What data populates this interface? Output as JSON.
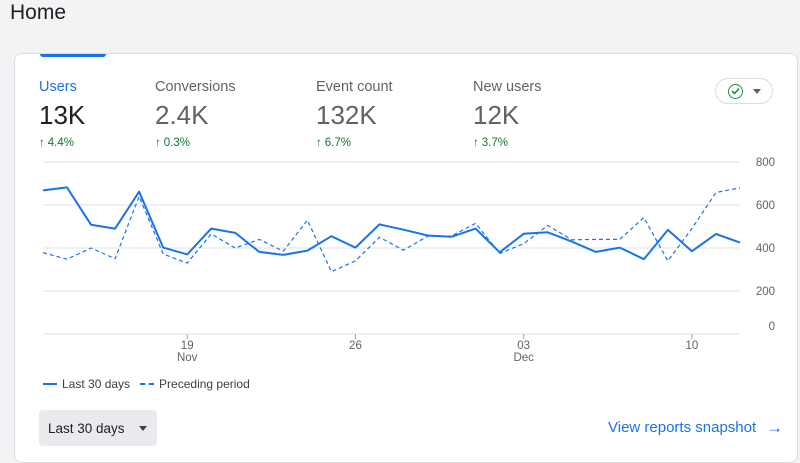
{
  "page": {
    "title": "Home"
  },
  "metrics": [
    {
      "label": "Users",
      "value": "13K",
      "delta": "4.4%"
    },
    {
      "label": "Conversions",
      "value": "2.4K",
      "delta": "0.3%"
    },
    {
      "label": "Event count",
      "value": "132K",
      "delta": "6.7%"
    },
    {
      "label": "New users",
      "value": "12K",
      "delta": "3.7%"
    }
  ],
  "status": {
    "icon": "check-circle-icon",
    "dropdown_icon": "caret-down-icon"
  },
  "colors": {
    "accent": "#1a73e8",
    "positive": "#137333",
    "grid": "#e0e0e0"
  },
  "legend": {
    "current": "Last 30 days",
    "previous": "Preceding period"
  },
  "footer": {
    "range_label": "Last 30 days",
    "snapshot_link": "View reports snapshot"
  },
  "chart_data": {
    "type": "line",
    "ylim": [
      0,
      800
    ],
    "y_ticks": [
      "800",
      "600",
      "400",
      "200",
      "0"
    ],
    "x_tick_labels": [
      {
        "index": 6,
        "day": "19",
        "month": "Nov"
      },
      {
        "index": 13,
        "day": "26",
        "month": ""
      },
      {
        "index": 20,
        "day": "03",
        "month": "Dec"
      },
      {
        "index": 27,
        "day": "10",
        "month": ""
      }
    ],
    "series": [
      {
        "name": "Last 30 days",
        "style": "solid",
        "values": [
          668,
          682,
          508,
          490,
          662,
          402,
          370,
          490,
          470,
          382,
          368,
          388,
          455,
          402,
          510,
          485,
          458,
          452,
          490,
          380,
          466,
          473,
          430,
          382,
          402,
          348,
          484,
          385,
          465,
          425
        ]
      },
      {
        "name": "Preceding period",
        "style": "dashed",
        "values": [
          378,
          348,
          400,
          350,
          640,
          372,
          330,
          465,
          400,
          440,
          385,
          530,
          290,
          340,
          450,
          390,
          455,
          456,
          515,
          375,
          420,
          505,
          438,
          440,
          440,
          542,
          340,
          490,
          658,
          680
        ]
      }
    ]
  }
}
